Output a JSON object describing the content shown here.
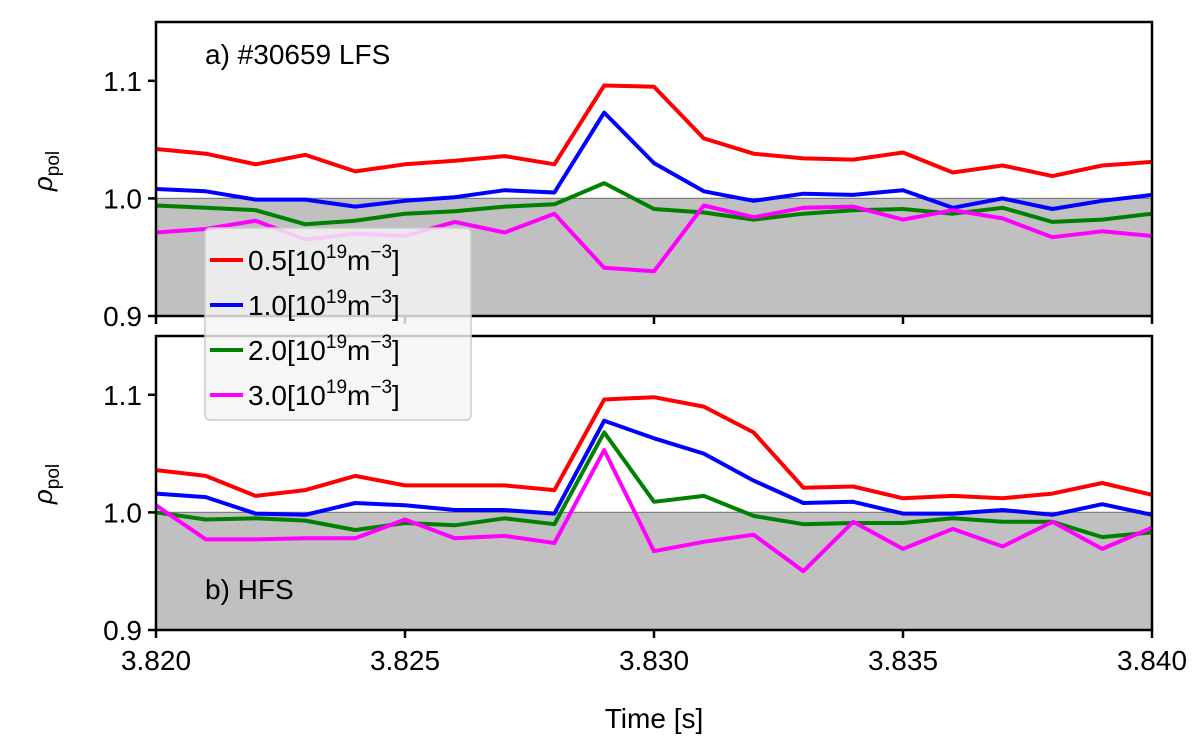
{
  "chart_data": [
    {
      "type": "line",
      "panel_label": "a) #30659 LFS",
      "ylabel": "ρ",
      "ylabel_sub": "pol",
      "xlim": [
        3.82,
        3.84
      ],
      "ylim": [
        0.9,
        1.15
      ],
      "shaded_below": 1.0,
      "yticks": [
        "0.9",
        "1.0",
        "1.1"
      ],
      "x": [
        3.82,
        3.821,
        3.822,
        3.823,
        3.824,
        3.825,
        3.826,
        3.827,
        3.828,
        3.829,
        3.83,
        3.831,
        3.832,
        3.833,
        3.834,
        3.835,
        3.836,
        3.837,
        3.838,
        3.839,
        3.84
      ],
      "series": [
        {
          "name": "0.5",
          "color": "#ff0000",
          "values": [
            1.042,
            1.038,
            1.029,
            1.037,
            1.023,
            1.029,
            1.032,
            1.036,
            1.029,
            1.096,
            1.095,
            1.051,
            1.038,
            1.034,
            1.033,
            1.039,
            1.022,
            1.028,
            1.019,
            1.028,
            1.031
          ]
        },
        {
          "name": "1.0",
          "color": "#0000ff",
          "values": [
            1.008,
            1.006,
            0.999,
            0.999,
            0.993,
            0.998,
            1.001,
            1.007,
            1.005,
            1.073,
            1.03,
            1.006,
            0.998,
            1.004,
            1.003,
            1.007,
            0.992,
            1.0,
            0.991,
            0.998,
            1.003
          ]
        },
        {
          "name": "2.0",
          "color": "#008000",
          "values": [
            0.994,
            0.992,
            0.99,
            0.978,
            0.981,
            0.987,
            0.989,
            0.993,
            0.995,
            1.013,
            0.991,
            0.988,
            0.982,
            0.987,
            0.99,
            0.991,
            0.987,
            0.992,
            0.98,
            0.982,
            0.987
          ]
        },
        {
          "name": "3.0",
          "color": "#ff00ff",
          "values": [
            0.971,
            0.974,
            0.981,
            0.965,
            0.97,
            0.968,
            0.98,
            0.971,
            0.987,
            0.941,
            0.938,
            0.994,
            0.984,
            0.992,
            0.993,
            0.982,
            0.99,
            0.983,
            0.967,
            0.972,
            0.968
          ]
        }
      ]
    },
    {
      "type": "line",
      "panel_label": "b) HFS",
      "ylabel": "ρ",
      "ylabel_sub": "pol",
      "xlabel": "Time [s]",
      "xlim": [
        3.82,
        3.84
      ],
      "ylim": [
        0.9,
        1.15
      ],
      "shaded_below": 1.0,
      "yticks": [
        "0.9",
        "1.0",
        "1.1"
      ],
      "xticks": [
        "3.820",
        "3.825",
        "3.830",
        "3.835",
        "3.840"
      ],
      "x": [
        3.82,
        3.821,
        3.822,
        3.823,
        3.824,
        3.825,
        3.826,
        3.827,
        3.828,
        3.829,
        3.83,
        3.831,
        3.832,
        3.833,
        3.834,
        3.835,
        3.836,
        3.837,
        3.838,
        3.839,
        3.84
      ],
      "series": [
        {
          "name": "0.5",
          "color": "#ff0000",
          "values": [
            1.036,
            1.031,
            1.014,
            1.019,
            1.031,
            1.023,
            1.023,
            1.023,
            1.019,
            1.096,
            1.098,
            1.09,
            1.068,
            1.021,
            1.022,
            1.012,
            1.014,
            1.012,
            1.016,
            1.025,
            1.015
          ]
        },
        {
          "name": "1.0",
          "color": "#0000ff",
          "values": [
            1.016,
            1.013,
            0.999,
            0.998,
            1.008,
            1.006,
            1.002,
            1.002,
            0.999,
            1.078,
            1.063,
            1.05,
            1.027,
            1.008,
            1.009,
            0.999,
            0.999,
            1.002,
            0.998,
            1.007,
            0.998
          ]
        },
        {
          "name": "2.0",
          "color": "#008000",
          "values": [
            1.0,
            0.994,
            0.995,
            0.993,
            0.985,
            0.991,
            0.989,
            0.995,
            0.99,
            1.068,
            1.009,
            1.014,
            0.997,
            0.99,
            0.991,
            0.991,
            0.995,
            0.992,
            0.992,
            0.979,
            0.983
          ]
        },
        {
          "name": "3.0",
          "color": "#ff00ff",
          "values": [
            1.006,
            0.977,
            0.977,
            0.978,
            0.978,
            0.994,
            0.978,
            0.98,
            0.974,
            1.053,
            0.967,
            0.975,
            0.981,
            0.95,
            0.992,
            0.969,
            0.986,
            0.971,
            0.992,
            0.969,
            0.987
          ]
        }
      ]
    }
  ],
  "legend": {
    "placement": "upper-left",
    "unit_base": "[10",
    "unit_exp1": "19",
    "unit_mid": "m",
    "unit_exp2": "−3",
    "unit_close": "]"
  }
}
